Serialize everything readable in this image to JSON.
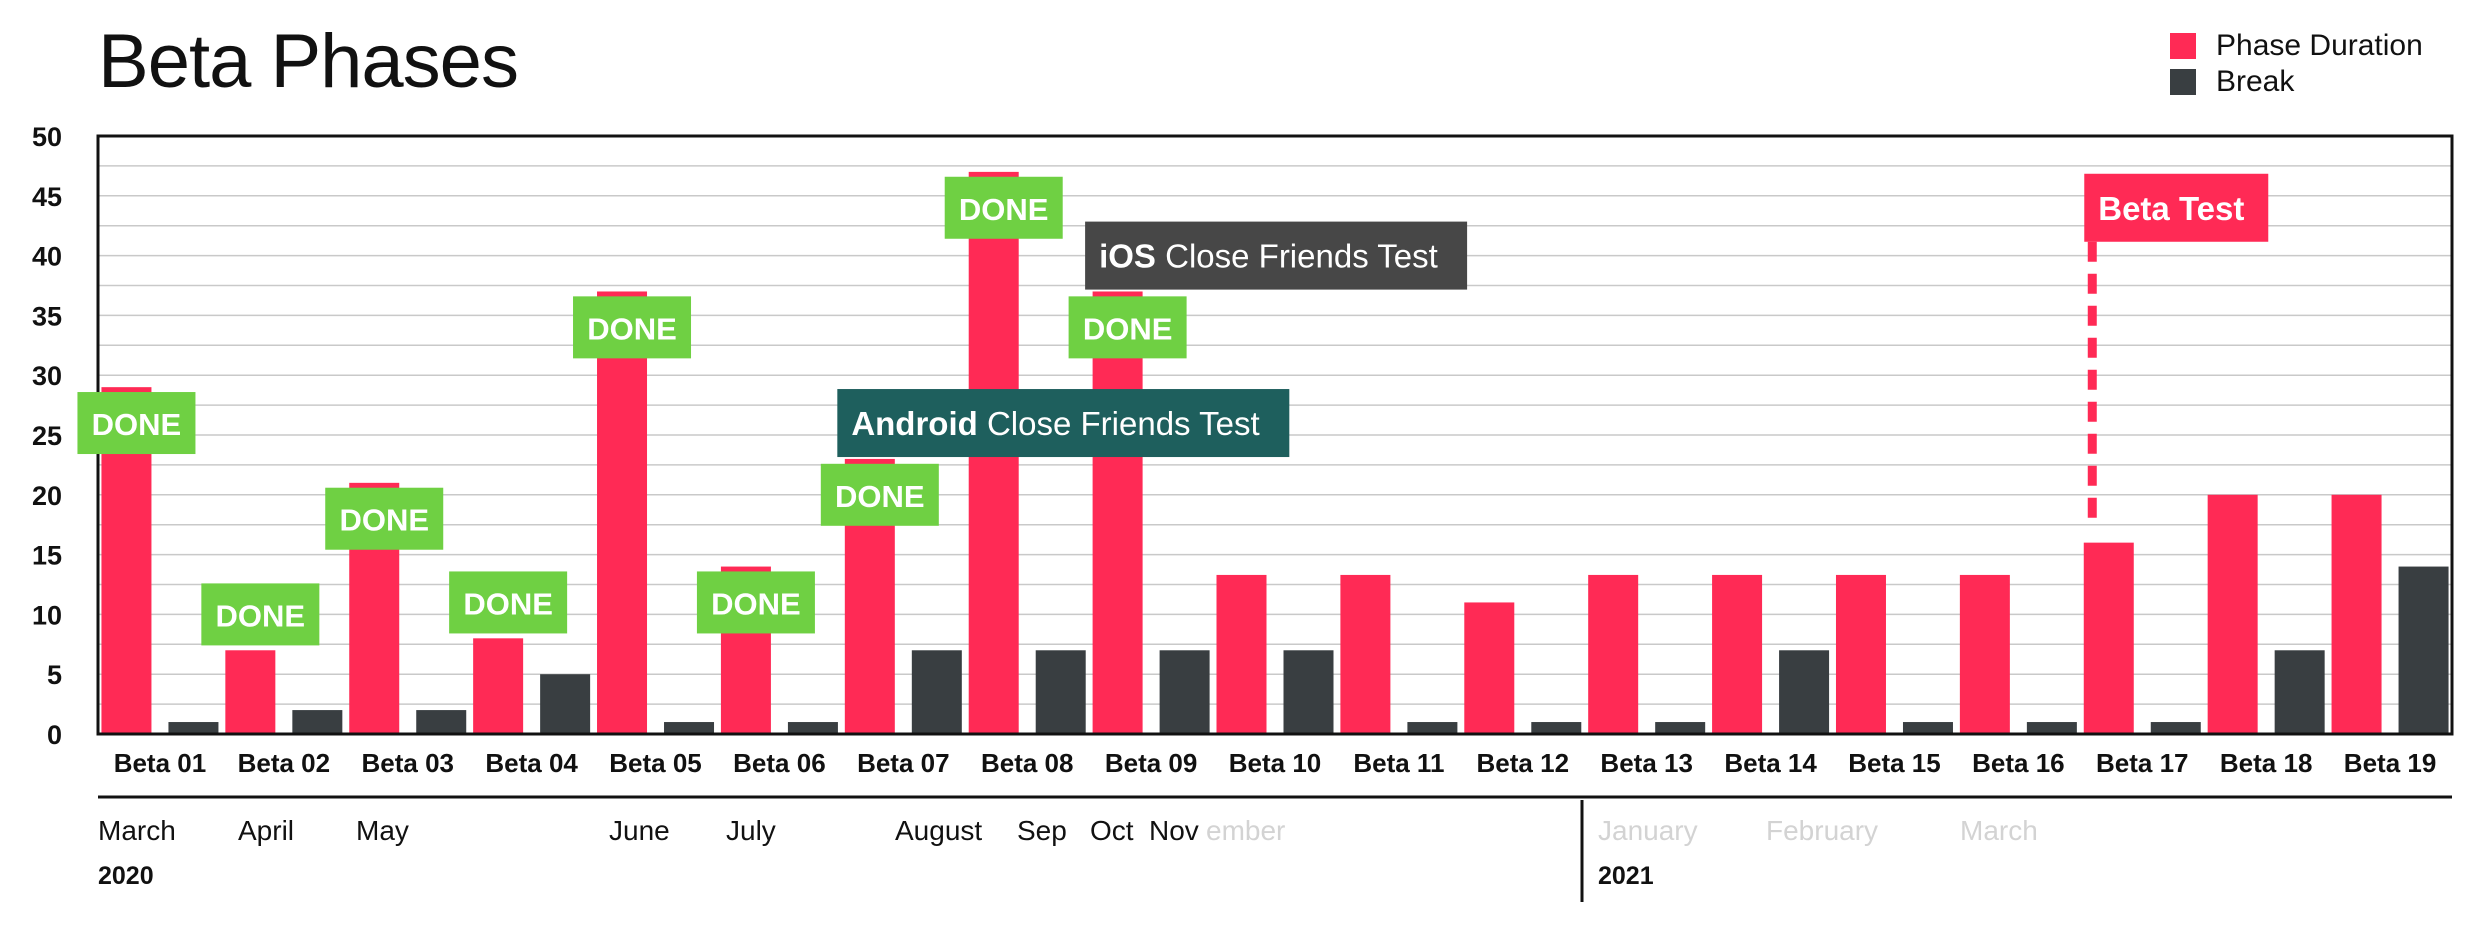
{
  "chart_data": {
    "type": "bar",
    "title": "Beta Phases",
    "ylim": [
      0,
      50
    ],
    "yticks": [
      0,
      5,
      10,
      15,
      20,
      25,
      30,
      35,
      40,
      45,
      50
    ],
    "grid": true,
    "legend_position": "top-right",
    "categories": [
      "Beta 01",
      "Beta 02",
      "Beta 03",
      "Beta 04",
      "Beta 05",
      "Beta 06",
      "Beta 07",
      "Beta 08",
      "Beta 09",
      "Beta 10",
      "Beta 11",
      "Beta 12",
      "Beta 13",
      "Beta 14",
      "Beta 15",
      "Beta 16",
      "Beta 17",
      "Beta 18",
      "Beta 19"
    ],
    "series": [
      {
        "name": "Phase Duration",
        "color": "#ff2a55",
        "values": [
          29,
          7,
          21,
          8,
          37,
          14,
          23,
          47,
          37,
          13.3,
          13.3,
          11,
          13.3,
          13.3,
          13.3,
          13.3,
          16,
          20,
          20
        ]
      },
      {
        "name": "Break",
        "color": "#393e41",
        "values": [
          1,
          2,
          2,
          5,
          1,
          1,
          7,
          7,
          7,
          7,
          1,
          1,
          1,
          7,
          1,
          1,
          1,
          7,
          14
        ]
      }
    ],
    "done_labels": {
      "text": "DONE",
      "color": "#6fd043",
      "items": [
        {
          "category": "Beta 01",
          "value": 26
        },
        {
          "category": "Beta 02",
          "value": 10
        },
        {
          "category": "Beta 03",
          "value": 18
        },
        {
          "category": "Beta 04",
          "value": 11
        },
        {
          "category": "Beta 05",
          "value": 34
        },
        {
          "category": "Beta 06",
          "value": 11
        },
        {
          "category": "Beta 07",
          "value": 20
        },
        {
          "category": "Beta 08",
          "value": 44
        },
        {
          "category": "Beta 09",
          "value": 34
        }
      ]
    },
    "annotations": [
      {
        "bold": "Android",
        "text": " Close Friends Test",
        "color": "#1e5f5d",
        "anchor_category": "Beta 07",
        "value": 26
      },
      {
        "bold": "iOS",
        "text": " Close Friends Test",
        "color": "#474747",
        "anchor_category": "Beta 09",
        "value": 40
      },
      {
        "bold": "Beta Test",
        "text": "",
        "color": "#ff2a55",
        "anchor_category": "Beta 17",
        "value": 44,
        "dashed_line_to": 18
      }
    ],
    "timeline": {
      "years": [
        {
          "label": "2020",
          "months": [
            {
              "label": "March",
              "muted": false
            },
            {
              "label": "April",
              "muted": false
            },
            {
              "label": "May",
              "muted": false
            },
            {
              "label": "June",
              "muted": false
            },
            {
              "label": "July",
              "muted": false
            },
            {
              "label": "August",
              "muted": false
            },
            {
              "label": "Sep",
              "muted": false
            },
            {
              "label": "Oct",
              "muted": false
            },
            {
              "label": "Nov",
              "muted": false
            },
            {
              "label": "ember",
              "muted": true
            }
          ]
        },
        {
          "label": "2021",
          "months": [
            {
              "label": "January",
              "muted": true
            },
            {
              "label": "February",
              "muted": true
            },
            {
              "label": "March",
              "muted": true
            }
          ]
        }
      ]
    }
  }
}
